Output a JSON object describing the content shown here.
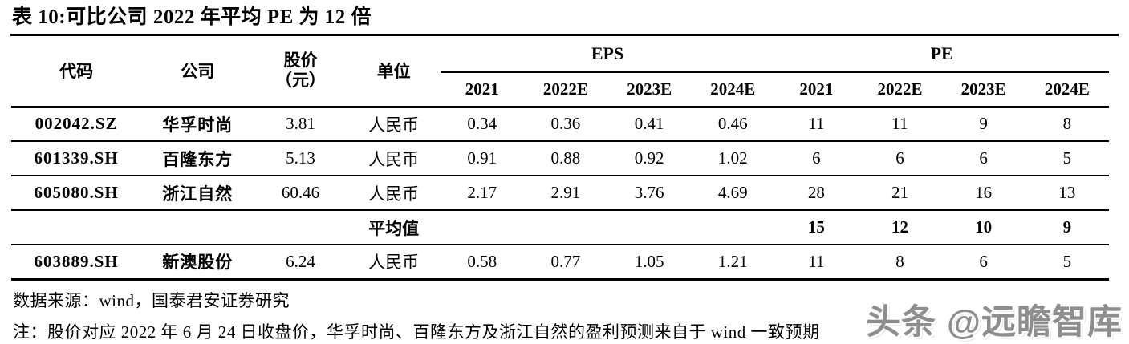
{
  "title": "表 10:可比公司 2022 年平均 PE 为 12 倍",
  "table": {
    "headers": {
      "code": "代码",
      "company": "公司",
      "price_line1": "股价",
      "price_line2": "（元）",
      "unit": "单位",
      "eps_group": "EPS",
      "pe_group": "PE",
      "eps_years": [
        "2021",
        "2022E",
        "2023E",
        "2024E"
      ],
      "pe_years": [
        "2021",
        "2022E",
        "2023E",
        "2024E"
      ]
    },
    "rows": [
      {
        "code": "002042.SZ",
        "company": "华孚时尚",
        "price": "3.81",
        "unit": "人民币",
        "eps": [
          "0.34",
          "0.36",
          "0.41",
          "0.46"
        ],
        "pe": [
          "11",
          "11",
          "9",
          "8"
        ]
      },
      {
        "code": "601339.SH",
        "company": "百隆东方",
        "price": "5.13",
        "unit": "人民币",
        "eps": [
          "0.91",
          "0.88",
          "0.92",
          "1.02"
        ],
        "pe": [
          "6",
          "6",
          "6",
          "5"
        ]
      },
      {
        "code": "605080.SH",
        "company": "浙江自然",
        "price": "60.46",
        "unit": "人民币",
        "eps": [
          "2.17",
          "2.91",
          "3.76",
          "4.69"
        ],
        "pe": [
          "28",
          "21",
          "16",
          "13"
        ]
      },
      {
        "code": "",
        "company": "",
        "price": "",
        "unit": "平均值",
        "eps": [
          "",
          "",
          "",
          ""
        ],
        "pe": [
          "15",
          "12",
          "10",
          "9"
        ]
      },
      {
        "code": "603889.SH",
        "company": "新澳股份",
        "price": "6.24",
        "unit": "人民币",
        "eps": [
          "0.58",
          "0.77",
          "1.05",
          "1.21"
        ],
        "pe": [
          "11",
          "8",
          "6",
          "5"
        ]
      }
    ]
  },
  "footer": {
    "source": "数据来源：wind，国泰君安证券研究",
    "note": "注：股价对应 2022 年 6 月 24 日收盘价，华孚时尚、百隆东方及浙江自然的盈利预测来自于 wind 一致预期"
  },
  "watermark": "头条 @远瞻智库",
  "colors": {
    "text": "#000000",
    "rule": "#000000",
    "watermark": "#8e8e8e",
    "background": "#ffffff"
  }
}
